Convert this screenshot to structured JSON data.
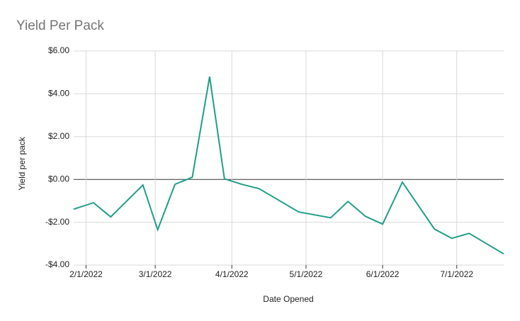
{
  "chart_data": {
    "type": "line",
    "title": "Yield Per Pack",
    "x_label": "Date Opened",
    "y_label": "Yield per pack",
    "x": [
      "2022-01-27",
      "2022-02-04",
      "2022-02-11",
      "2022-02-24",
      "2022-03-02",
      "2022-03-09",
      "2022-03-16",
      "2022-03-23",
      "2022-03-29",
      "2022-04-05",
      "2022-04-12",
      "2022-04-28",
      "2022-05-11",
      "2022-05-18",
      "2022-05-25",
      "2022-06-01",
      "2022-06-09",
      "2022-06-22",
      "2022-06-29",
      "2022-07-06",
      "2022-07-20"
    ],
    "series": [
      {
        "name": "Yield per pack",
        "color": "#1f9e89",
        "values": [
          -1.39,
          -1.09,
          -1.75,
          -0.26,
          -2.35,
          -0.23,
          0.1,
          4.8,
          0.03,
          -0.23,
          -0.43,
          -1.52,
          -1.79,
          -1.03,
          -1.72,
          -2.09,
          -0.13,
          -2.32,
          -2.75,
          -2.52,
          -3.48
        ]
      }
    ],
    "xlim": [
      "2022-01-27",
      "2022-07-20"
    ],
    "xticks": [
      {
        "value": "2022-02-01",
        "label": "2/1/2022"
      },
      {
        "value": "2022-03-01",
        "label": "3/1/2022"
      },
      {
        "value": "2022-04-01",
        "label": "4/1/2022"
      },
      {
        "value": "2022-05-01",
        "label": "5/1/2022"
      },
      {
        "value": "2022-06-01",
        "label": "6/1/2022"
      },
      {
        "value": "2022-07-01",
        "label": "7/1/2022"
      }
    ],
    "ylim": [
      -4,
      6
    ],
    "yticks": [
      {
        "value": -4,
        "label": "-$4.00"
      },
      {
        "value": -2,
        "label": "-$2.00"
      },
      {
        "value": 0,
        "label": "$0.00"
      },
      {
        "value": 2,
        "label": "$2.00"
      },
      {
        "value": 4,
        "label": "$4.00"
      },
      {
        "value": 6,
        "label": "$6.00"
      }
    ],
    "grid": true
  }
}
